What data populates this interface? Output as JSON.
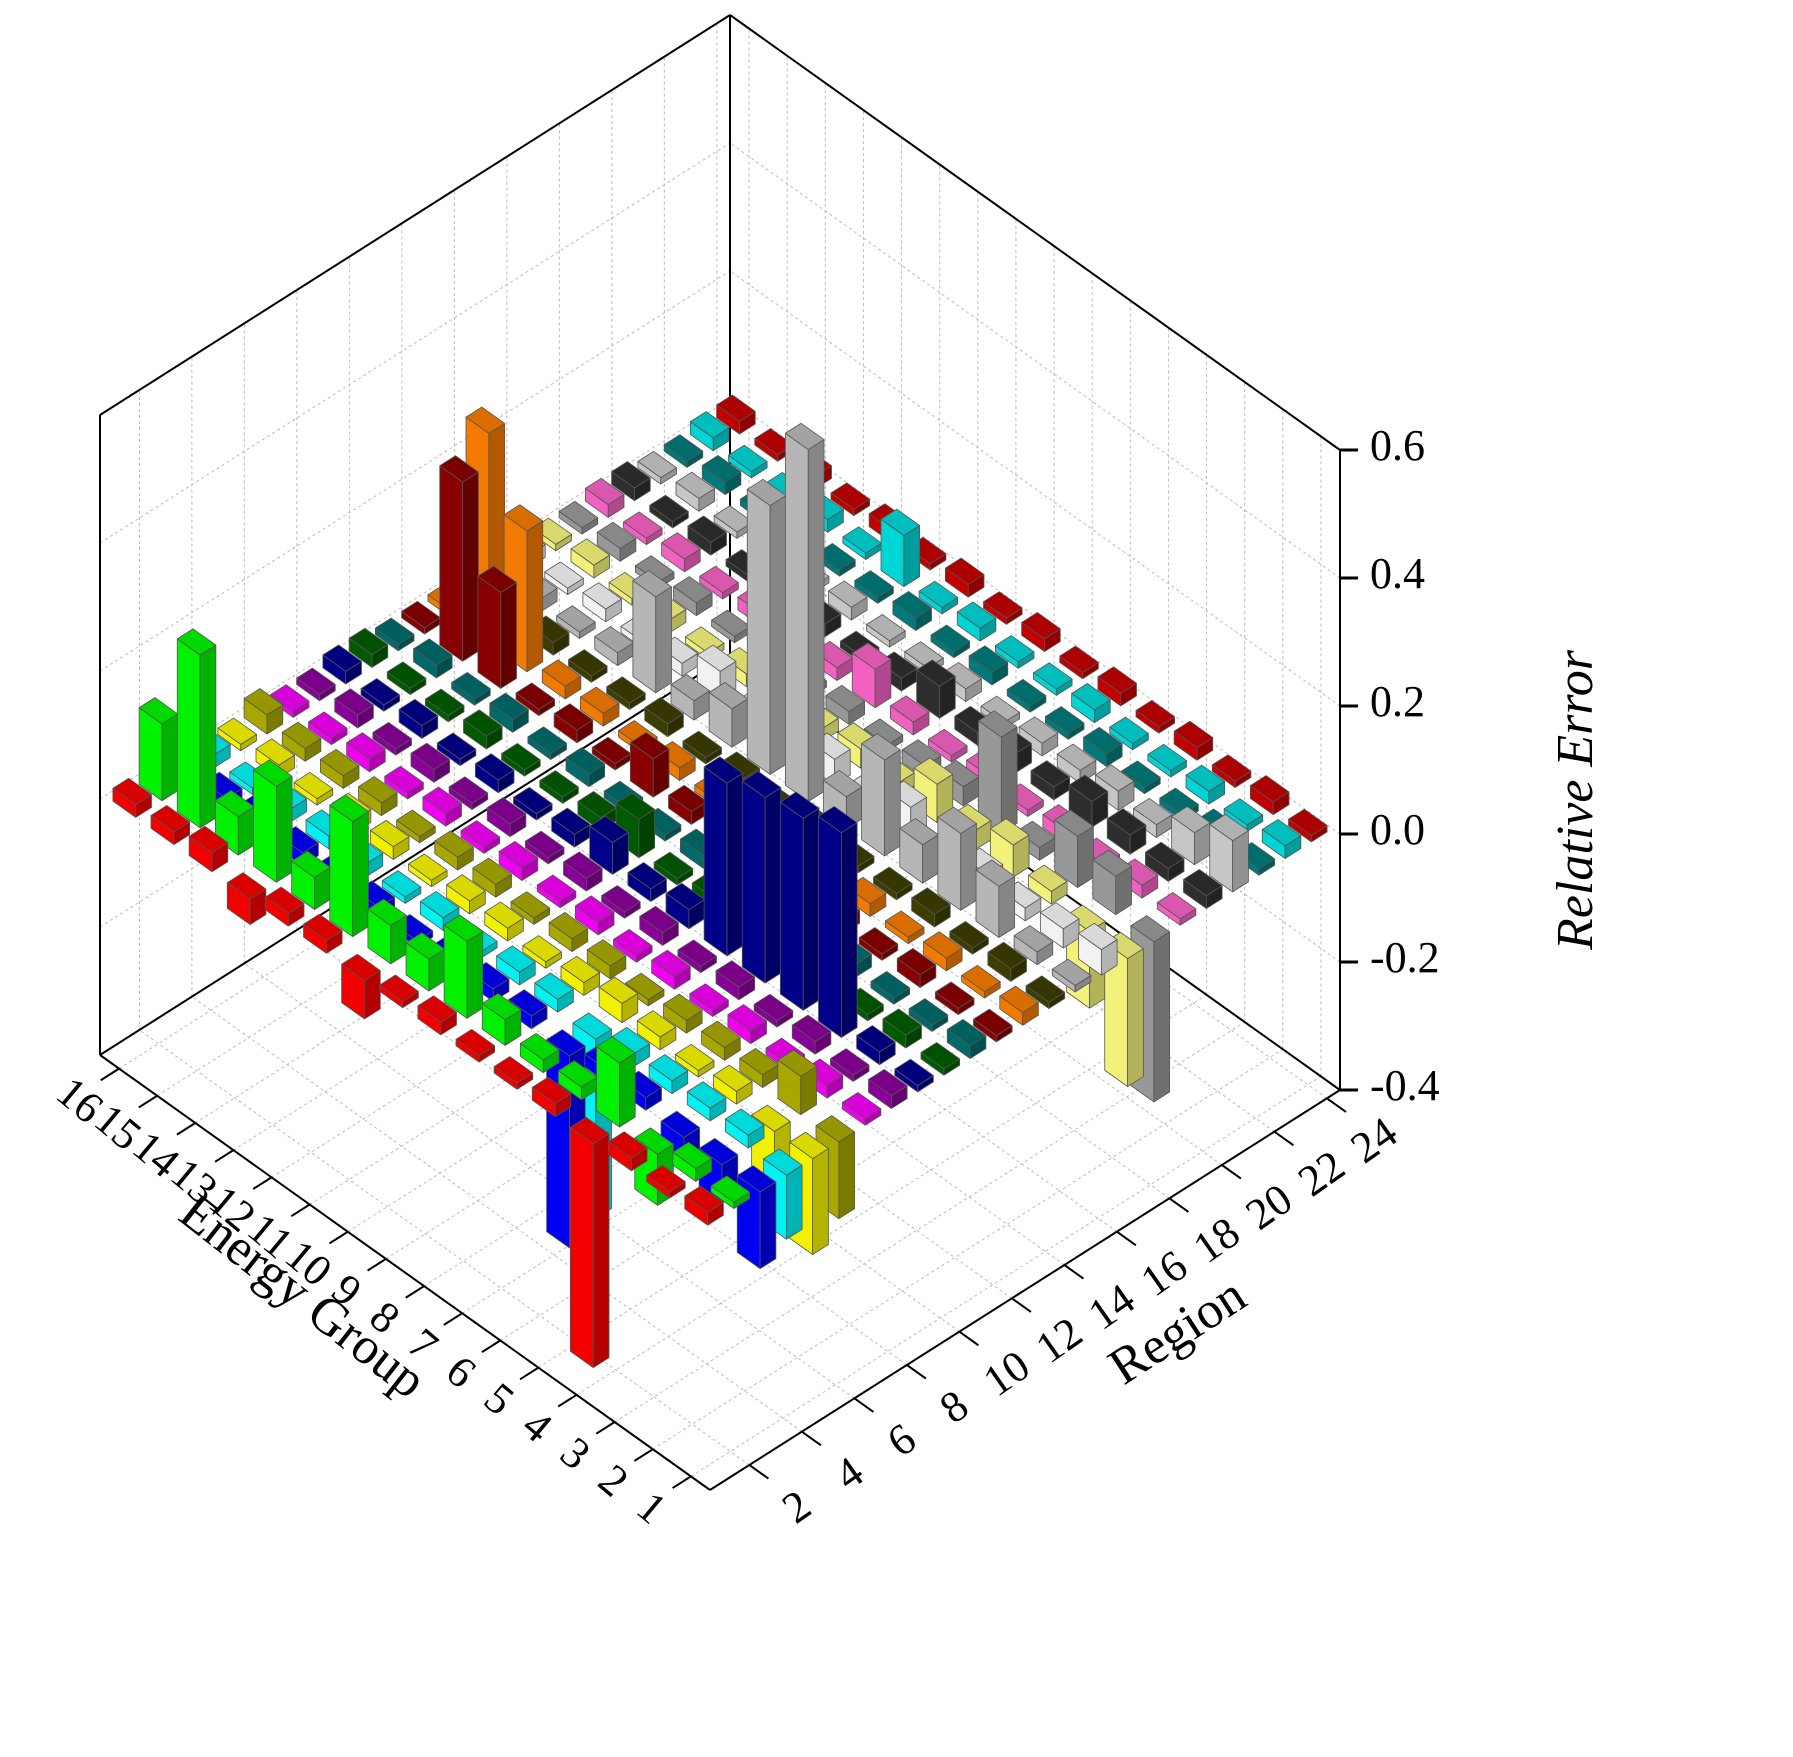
{
  "chart_data": {
    "type": "bar3d",
    "xlabel": "Energy Group",
    "ylabel": "Region",
    "zlabel": "Relative Error",
    "x": [
      1,
      2,
      3,
      4,
      5,
      6,
      7,
      8,
      9,
      10,
      11,
      12,
      13,
      14,
      15,
      16
    ],
    "xlim": [
      0.5,
      16.5
    ],
    "xticks": [
      1,
      2,
      3,
      4,
      5,
      6,
      7,
      8,
      9,
      10,
      11,
      12,
      13,
      14,
      15,
      16
    ],
    "ylim": [
      0.5,
      24.5
    ],
    "yticks": [
      2,
      4,
      6,
      8,
      10,
      12,
      14,
      16,
      18,
      20,
      22,
      24
    ],
    "zlim": [
      -0.4,
      0.6
    ],
    "zticks": [
      -0.4,
      -0.2,
      {
        "value": 0,
        "label": "0.0"
      },
      0.2,
      0.4,
      0.6
    ],
    "grid": true,
    "series": [
      {
        "y": 1,
        "color": "#ff0000",
        "values": [
          0.02,
          0.01,
          0.02,
          -0.35,
          0.02,
          0.01,
          0.01,
          0.02,
          0.01,
          -0.06,
          0.02,
          0.02,
          -0.04,
          0.03,
          0.02,
          0.02
        ]
      },
      {
        "y": 2,
        "color": "#00ff00",
        "values": [
          0.01,
          0.02,
          -0.08,
          0.1,
          0.02,
          0.02,
          0.04,
          0.12,
          0.05,
          0.06,
          0.18,
          0.05,
          0.15,
          0.06,
          0.27,
          0.12
        ]
      },
      {
        "y": 3,
        "color": "#0000ff",
        "values": [
          -0.12,
          -0.06,
          -0.05,
          0.02,
          0.02,
          -0.3,
          0.02,
          0.02,
          0.02,
          0.01,
          0.02,
          0.02,
          0.02,
          0.03,
          0.02,
          0.03
        ]
      },
      {
        "y": 4,
        "color": "#00ffff",
        "values": [
          -0.1,
          0.02,
          0.02,
          0.02,
          0.02,
          -0.28,
          0.02,
          0.02,
          0.01,
          0.02,
          0.01,
          0.02,
          0.02,
          0.02,
          0.01,
          0.02
        ]
      },
      {
        "y": 5,
        "color": "#ffff00",
        "values": [
          -0.15,
          -0.14,
          0.02,
          0.01,
          0.02,
          0.03,
          0.02,
          0.01,
          0.02,
          0.02,
          0.01,
          0.02,
          0.02,
          0.01,
          0.02,
          0.01
        ]
      },
      {
        "y": 6,
        "color": "#b0b000",
        "values": [
          -0.12,
          0.06,
          0.02,
          0.02,
          0.02,
          0.01,
          0.02,
          0.02,
          0.01,
          0.02,
          0.02,
          0.01,
          0.02,
          0.02,
          0.02,
          0.03
        ]
      },
      {
        "y": 7,
        "color": "#ff00ff",
        "values": [
          0.01,
          0.02,
          0.01,
          0.02,
          0.01,
          0.02,
          0.01,
          0.02,
          0.01,
          0.02,
          0.01,
          0.02,
          0.01,
          0.02,
          0.01,
          0.01
        ]
      },
      {
        "y": 8,
        "color": "#9000a0",
        "values": [
          0.02,
          0.01,
          0.02,
          0.01,
          0.02,
          0.01,
          0.02,
          0.01,
          0.02,
          0.01,
          0.02,
          0.01,
          0.02,
          0.01,
          0.02,
          0.01
        ]
      },
      {
        "y": 9,
        "color": "#000090",
        "values": [
          0.01,
          0.02,
          0.32,
          0.3,
          0.29,
          0.27,
          0.03,
          0.02,
          0.05,
          0.02,
          0.01,
          0.02,
          0.01,
          0.02,
          0.01,
          0.02
        ]
      },
      {
        "y": 10,
        "color": "#006000",
        "values": [
          0.01,
          0.02,
          0.01,
          0.01,
          0.02,
          0.01,
          0.02,
          0.01,
          0.06,
          0.02,
          0.01,
          0.01,
          0.02,
          0.01,
          0.01,
          0.02
        ]
      },
      {
        "y": 11,
        "color": "#007070",
        "values": [
          0.02,
          0.01,
          0.01,
          0.02,
          0.01,
          0.02,
          0.01,
          0.02,
          0.01,
          0.01,
          0.02,
          0.01,
          0.02,
          0.01,
          0.02,
          0.01
        ]
      },
      {
        "y": 12,
        "color": "#900000",
        "values": [
          0.01,
          0.01,
          0.02,
          0.01,
          0.02,
          0.01,
          0.02,
          0.01,
          0.02,
          0.06,
          0.01,
          0.02,
          0.01,
          0.15,
          0.28,
          0.01
        ]
      },
      {
        "y": 13,
        "color": "#ff8000",
        "values": [
          0.02,
          0.01,
          0.02,
          0.01,
          0.02,
          0.02,
          0.01,
          0.02,
          0.01,
          0.02,
          0.01,
          0.02,
          0.02,
          0.22,
          0.33,
          0.01
        ]
      },
      {
        "y": 14,
        "color": "#404000",
        "values": [
          0.01,
          0.02,
          0.01,
          0.02,
          0.01,
          0.01,
          0.02,
          0.01,
          0.02,
          0.01,
          0.02,
          0.01,
          0.01,
          0.02,
          0.01,
          0.02
        ]
      },
      {
        "y": 15,
        "color": "#c0c0c0",
        "values": [
          0.01,
          0.02,
          0.08,
          0.12,
          0.06,
          0.15,
          0.05,
          0.55,
          0.42,
          0.06,
          0.03,
          0.15,
          0.02,
          0.01,
          0.02,
          0.01
        ]
      },
      {
        "y": 16,
        "color": "#ffffff",
        "values": [
          0.04,
          0.03,
          0.02,
          0.03,
          0.01,
          0.05,
          0.02,
          0.04,
          0.03,
          0.02,
          0.05,
          0.02,
          0.01,
          0.02,
          0.01,
          0.02
        ]
      },
      {
        "y": 17,
        "color": "#ffff80",
        "values": [
          -0.2,
          -0.12,
          0.02,
          0.05,
          0.03,
          0.06,
          0.02,
          0.03,
          0.02,
          0.01,
          0.02,
          0.01,
          0.02,
          0.01,
          0.02,
          0.01
        ]
      },
      {
        "y": 18,
        "color": "#a0a0a0",
        "values": [
          -0.25,
          0.06,
          0.08,
          0.02,
          0.15,
          0.03,
          0.02,
          0.01,
          0.02,
          0.01,
          0.02,
          0.01,
          0.02,
          0.01,
          0.02,
          0.01
        ]
      },
      {
        "y": 19,
        "color": "#ff66cc",
        "values": [
          0.01,
          0.02,
          0.01,
          0.02,
          0.01,
          0.02,
          0.01,
          0.02,
          0.06,
          0.02,
          0.01,
          0.02,
          0.01,
          0.02,
          0.01,
          0.02
        ]
      },
      {
        "y": 20,
        "color": "#303030",
        "values": [
          0.02,
          0.02,
          0.03,
          0.04,
          0.02,
          0.03,
          0.02,
          0.05,
          0.02,
          0.01,
          0.02,
          0.02,
          0.01,
          0.02,
          0.01,
          0.02
        ]
      },
      {
        "y": 21,
        "color": "#d0d0d0",
        "values": [
          0.08,
          0.05,
          0.02,
          0.03,
          0.02,
          0.02,
          0.01,
          0.02,
          0.01,
          0.01,
          0.02,
          0.01,
          0.02,
          0.01,
          0.02,
          0.01
        ]
      },
      {
        "y": 22,
        "color": "#008080",
        "values": [
          0.01,
          0.02,
          0.01,
          0.01,
          0.02,
          0.01,
          0.01,
          0.02,
          0.01,
          0.02,
          0.01,
          0.01,
          0.02,
          0.01,
          0.02,
          0.01
        ]
      },
      {
        "y": 23,
        "color": "#00e0e0",
        "values": [
          0.02,
          0.01,
          0.02,
          0.01,
          0.01,
          0.02,
          0.01,
          0.01,
          0.02,
          0.01,
          0.08,
          0.01,
          0.02,
          0.01,
          0.01,
          0.02
        ]
      },
      {
        "y": 24,
        "color": "#cc0000",
        "values": [
          0.01,
          0.02,
          0.01,
          0.02,
          0.01,
          0.02,
          0.01,
          0.02,
          0.01,
          0.02,
          0.01,
          0.02,
          0.01,
          0.02,
          0.01,
          0.02
        ]
      }
    ]
  }
}
